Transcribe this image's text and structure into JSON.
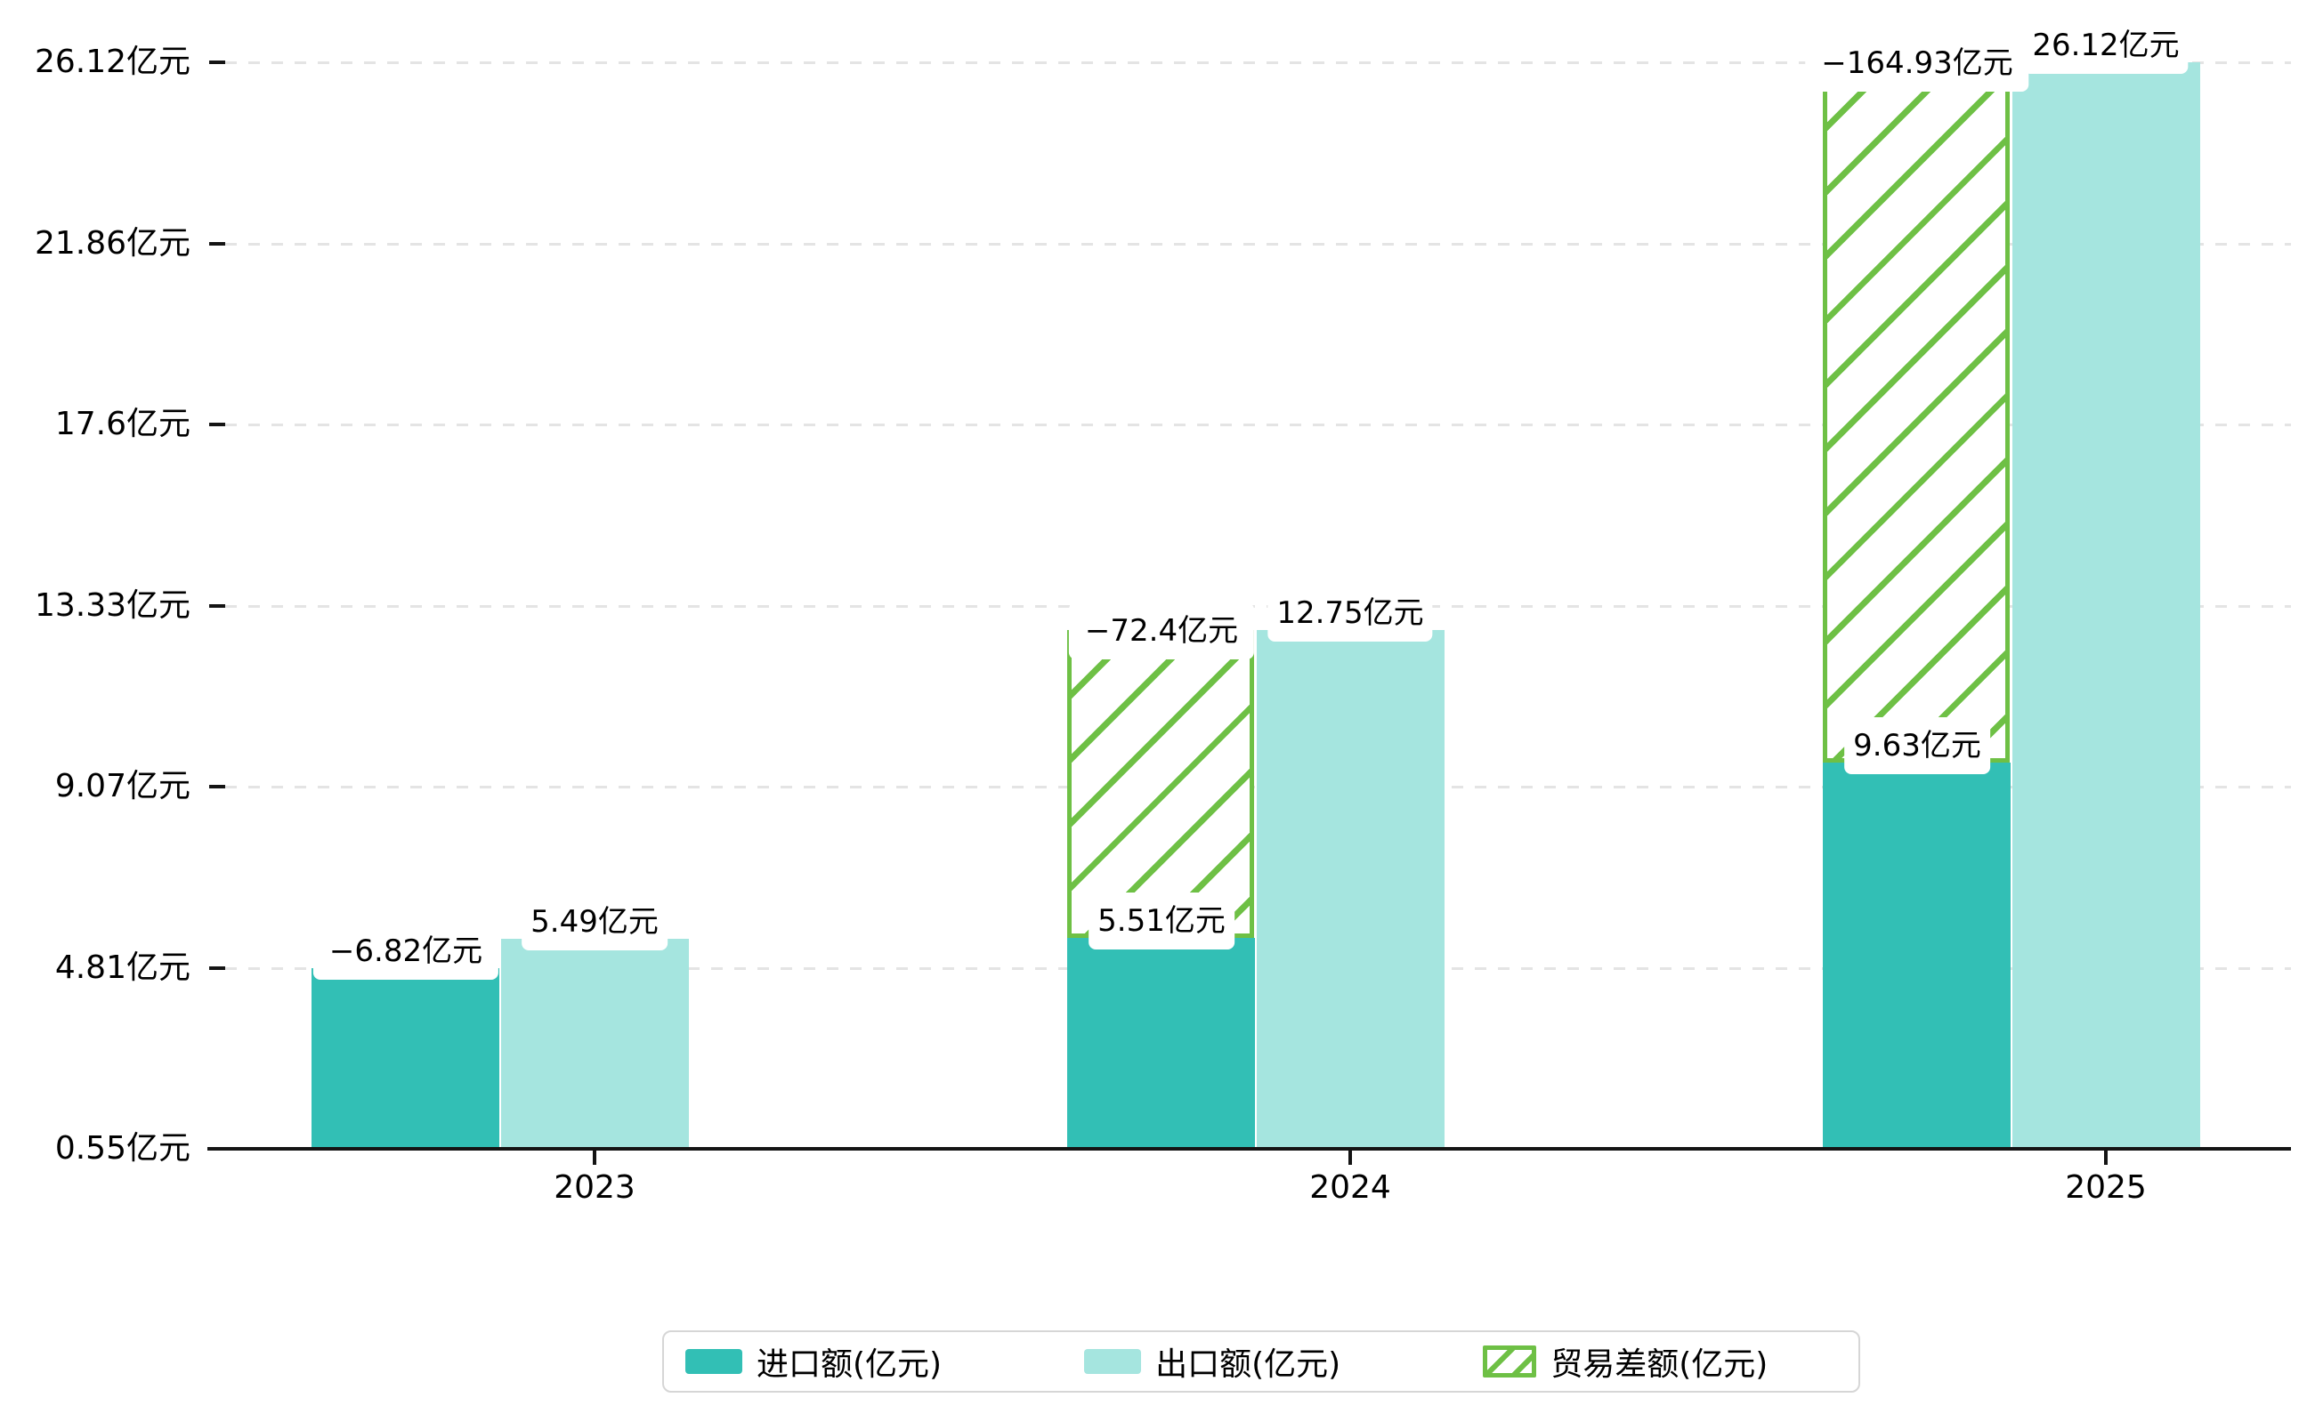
{
  "chart_data": {
    "type": "bar",
    "title": "",
    "xlabel": "",
    "ylabel": "",
    "categories": [
      "2023",
      "2024",
      "2025"
    ],
    "series": [
      {
        "name": "进口额(亿元)",
        "role": "import",
        "color": "#32BFB5",
        "values": [
          4.81,
          5.51,
          9.63
        ],
        "bar_labels": [
          null,
          "5.51亿元",
          "9.63亿元"
        ]
      },
      {
        "name": "出口额(亿元)",
        "role": "export",
        "color": "#A5E5DF",
        "values": [
          5.49,
          12.75,
          26.12
        ],
        "bar_labels": [
          "5.49亿元",
          "12.75亿元",
          "26.12亿元"
        ]
      },
      {
        "name": "贸易差额(亿元)",
        "role": "balance",
        "color": "#6EC045",
        "style": "hatched-stacked-on-import",
        "values": [
          -6.82,
          -72.4,
          -164.93
        ],
        "hatch_heights": [
          0.68,
          7.24,
          16.49
        ],
        "hatch_visible": [
          false,
          true,
          true
        ],
        "bar_labels": [
          "−6.82亿元",
          "−72.4亿元",
          "−164.93亿元"
        ]
      }
    ],
    "y_ticks": [
      "26.12亿元",
      "21.86亿元",
      "17.6亿元",
      "13.33亿元",
      "9.07亿元",
      "4.81亿元",
      "0.55亿元"
    ],
    "y_tick_values": [
      26.12,
      21.86,
      17.6,
      13.33,
      9.07,
      4.81,
      0.55
    ],
    "ylim": [
      0.55,
      26.12
    ],
    "grid": "horizontal dashed",
    "legend_position": "bottom-center"
  },
  "legend": {
    "items": [
      {
        "label": "进口额(亿元)",
        "swatch": "teal-solid"
      },
      {
        "label": "出口额(亿元)",
        "swatch": "light-teal-solid"
      },
      {
        "label": "贸易差额(亿元)",
        "swatch": "green-hatched"
      }
    ]
  },
  "colors": {
    "import": "#32BFB5",
    "export": "#A5E5DF",
    "balance_green": "#6EC045",
    "gridline": "#e4e4e4",
    "axis": "#141414",
    "label_text": "#000000",
    "background": "#ffffff"
  }
}
